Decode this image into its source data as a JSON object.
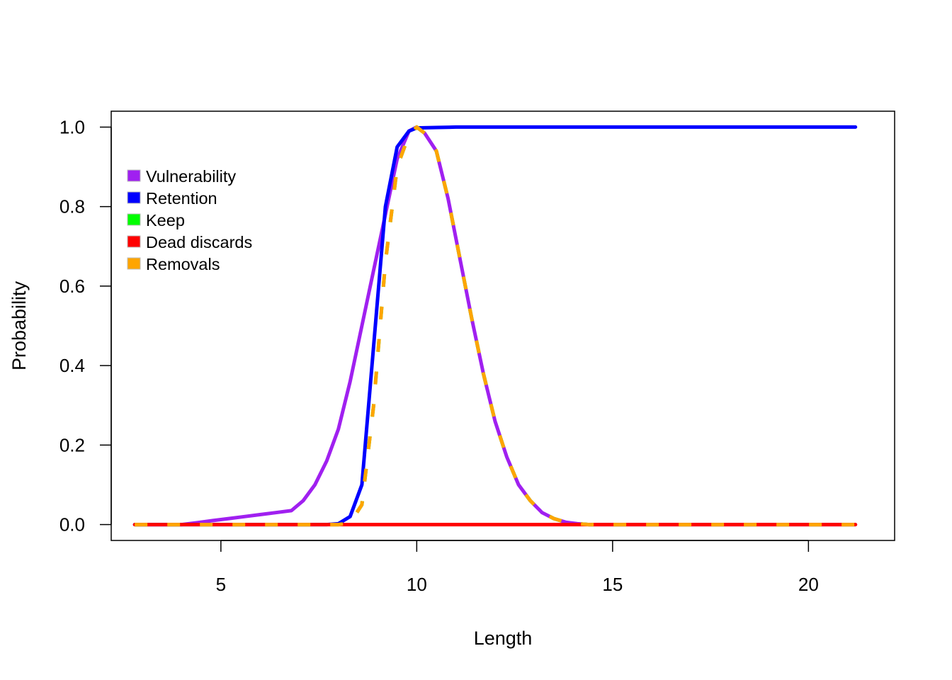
{
  "chart_data": {
    "type": "line",
    "title": "",
    "xlabel": "Length",
    "ylabel": "Probability",
    "xlim": [
      2.2,
      22.2
    ],
    "ylim": [
      -0.04,
      1.04
    ],
    "xticks": [
      5,
      10,
      15,
      20
    ],
    "yticks": [
      0.0,
      0.2,
      0.4,
      0.6,
      0.8,
      1.0
    ],
    "xtick_labels": [
      "5",
      "10",
      "15",
      "20"
    ],
    "ytick_labels": [
      "0.0",
      "0.2",
      "0.4",
      "0.6",
      "0.8",
      "1.0"
    ],
    "legend": {
      "position": "top-left"
    },
    "series": [
      {
        "name": "Vulnerability",
        "color": "#a020f0",
        "style": "solid",
        "x": [
          2.8,
          3.2,
          3.6,
          4.0,
          4.4,
          4.8,
          5.2,
          5.6,
          6.0,
          6.4,
          6.8,
          7.1,
          7.4,
          7.7,
          8.0,
          8.3,
          8.6,
          8.9,
          9.2,
          9.5,
          9.8,
          10.0,
          10.2,
          10.5,
          10.8,
          11.1,
          11.4,
          11.7,
          12.0,
          12.3,
          12.6,
          12.9,
          13.2,
          13.5,
          13.8,
          14.1,
          14.4,
          15.0,
          16.0,
          17.0,
          18.0,
          19.0,
          20.0,
          21.2
        ],
        "y": [
          0.0,
          0.0,
          0.0,
          0.0,
          0.005,
          0.01,
          0.015,
          0.02,
          0.025,
          0.03,
          0.035,
          0.06,
          0.1,
          0.16,
          0.24,
          0.36,
          0.5,
          0.64,
          0.78,
          0.92,
          0.99,
          1.0,
          0.985,
          0.94,
          0.82,
          0.67,
          0.52,
          0.38,
          0.26,
          0.17,
          0.1,
          0.06,
          0.03,
          0.015,
          0.006,
          0.002,
          0.0,
          0.0,
          0.0,
          0.0,
          0.0,
          0.0,
          0.0,
          0.0
        ]
      },
      {
        "name": "Retention",
        "color": "#0000ff",
        "style": "solid",
        "x": [
          2.8,
          4.0,
          6.0,
          7.7,
          8.0,
          8.3,
          8.6,
          8.9,
          9.2,
          9.5,
          9.8,
          10.0,
          10.5,
          11.0,
          12.0,
          14.0,
          16.0,
          18.0,
          20.0,
          21.2
        ],
        "y": [
          0.0,
          0.0,
          0.0,
          0.0,
          0.002,
          0.02,
          0.1,
          0.45,
          0.8,
          0.95,
          0.99,
          0.998,
          0.999,
          1.0,
          1.0,
          1.0,
          1.0,
          1.0,
          1.0,
          1.0
        ]
      },
      {
        "name": "Keep",
        "color": "#00ff00",
        "style": "dashed",
        "x": [
          2.8,
          4.0,
          6.0,
          7.7,
          8.0,
          8.3,
          8.6,
          8.9,
          9.2,
          9.5,
          9.8,
          10.0,
          10.2,
          10.5,
          10.8,
          11.1,
          11.4,
          11.7,
          12.0,
          12.3,
          12.6,
          12.9,
          13.2,
          13.5,
          13.8,
          14.1,
          14.4,
          15.0,
          16.0,
          17.0,
          18.0,
          19.0,
          20.0,
          21.2
        ],
        "y": [
          0.0,
          0.0,
          0.0,
          0.0,
          0.0,
          0.004,
          0.05,
          0.3,
          0.66,
          0.9,
          0.98,
          1.0,
          0.985,
          0.94,
          0.82,
          0.67,
          0.52,
          0.38,
          0.26,
          0.17,
          0.1,
          0.06,
          0.03,
          0.015,
          0.006,
          0.002,
          0.0,
          0.0,
          0.0,
          0.0,
          0.0,
          0.0,
          0.0,
          0.0
        ]
      },
      {
        "name": "Dead discards",
        "color": "#ff0000",
        "style": "solid",
        "x": [
          2.8,
          21.2
        ],
        "y": [
          0.0,
          0.0
        ]
      },
      {
        "name": "Removals",
        "color": "#ffa500",
        "style": "dashed",
        "x": [
          2.8,
          4.0,
          6.0,
          7.7,
          8.0,
          8.3,
          8.6,
          8.9,
          9.2,
          9.5,
          9.8,
          10.0,
          10.2,
          10.5,
          10.8,
          11.1,
          11.4,
          11.7,
          12.0,
          12.3,
          12.6,
          12.9,
          13.2,
          13.5,
          13.8,
          14.1,
          14.4,
          15.0,
          16.0,
          17.0,
          18.0,
          19.0,
          20.0,
          21.2
        ],
        "y": [
          0.0,
          0.0,
          0.0,
          0.0,
          0.0,
          0.004,
          0.05,
          0.3,
          0.66,
          0.9,
          0.98,
          1.0,
          0.985,
          0.94,
          0.82,
          0.67,
          0.52,
          0.38,
          0.26,
          0.17,
          0.1,
          0.06,
          0.03,
          0.015,
          0.006,
          0.002,
          0.0,
          0.0,
          0.0,
          0.0,
          0.0,
          0.0,
          0.0,
          0.0
        ]
      }
    ]
  }
}
